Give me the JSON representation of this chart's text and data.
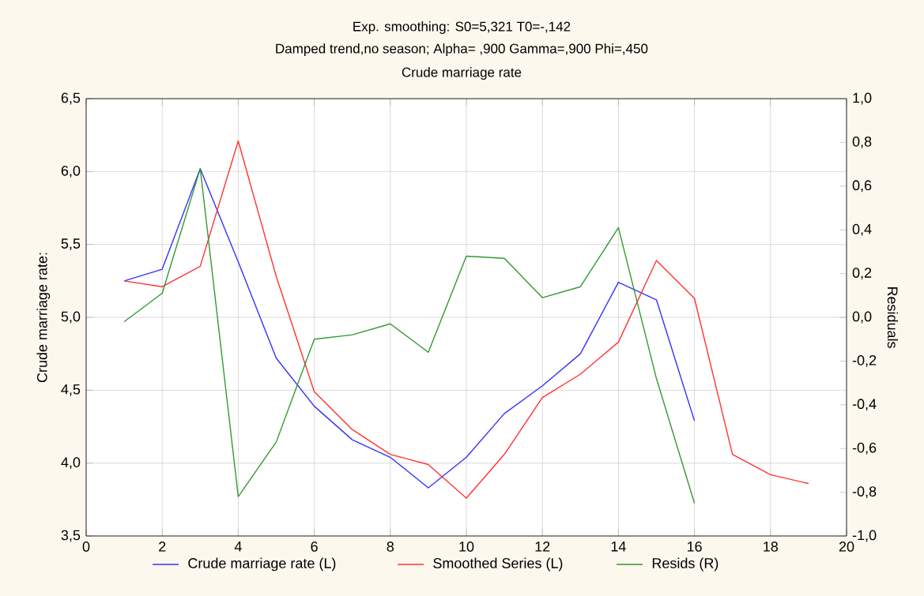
{
  "chart_data": {
    "type": "line",
    "title": "Exp. smoothing:  S0=5,321 T0=-,142",
    "subtitle": "Damped trend,no season; Alpha=  ,900 Gamma=,900 Phi=,450",
    "annotations": [
      "Crude marriage rate"
    ],
    "ylabel": "Crude marriage rate:",
    "y2label": "Residuals",
    "xlim": [
      0,
      20
    ],
    "xticks": [
      0,
      2,
      4,
      6,
      8,
      10,
      12,
      14,
      16,
      18,
      20
    ],
    "ylim": [
      3.5,
      6.5
    ],
    "yticks": [
      {
        "value": 3.5,
        "label": "3,5"
      },
      {
        "value": 4.0,
        "label": "4,0"
      },
      {
        "value": 4.5,
        "label": "4,5"
      },
      {
        "value": 5.0,
        "label": "5,0"
      },
      {
        "value": 5.5,
        "label": "5,5"
      },
      {
        "value": 6.0,
        "label": "6,0"
      },
      {
        "value": 6.5,
        "label": "6,5"
      }
    ],
    "y2lim": [
      -1.0,
      1.0
    ],
    "y2ticks": [
      {
        "value": -1.0,
        "label": "-1,0"
      },
      {
        "value": -0.8,
        "label": "-0,8"
      },
      {
        "value": -0.6,
        "label": "-0,6"
      },
      {
        "value": -0.4,
        "label": "-0,4"
      },
      {
        "value": -0.2,
        "label": "-0,2"
      },
      {
        "value": 0.0,
        "label": "0,0"
      },
      {
        "value": 0.2,
        "label": "0,2"
      },
      {
        "value": 0.4,
        "label": "0,4"
      },
      {
        "value": 0.6,
        "label": "0,6"
      },
      {
        "value": 0.8,
        "label": "0,8"
      },
      {
        "value": 1.0,
        "label": "1,0"
      }
    ],
    "grid": true,
    "legend": "bottom",
    "marker": "none",
    "line_style": "solid",
    "series": [
      {
        "name": "Crude marriage rate (L)",
        "color": "#3333ff",
        "axis": "y",
        "x": [
          1,
          2,
          3,
          4,
          5,
          6,
          7,
          8,
          9,
          10,
          11,
          12,
          13,
          14,
          15,
          16
        ],
        "values": [
          5.25,
          5.33,
          6.02,
          5.38,
          4.72,
          4.39,
          4.16,
          4.04,
          3.83,
          4.04,
          4.34,
          4.53,
          4.75,
          5.24,
          5.12,
          4.29
        ]
      },
      {
        "name": "Smoothed Series (L)",
        "color": "#ff3333",
        "axis": "y",
        "x": [
          1,
          2,
          3,
          4,
          5,
          6,
          7,
          8,
          9,
          10,
          11,
          12,
          13,
          14,
          15,
          16,
          17,
          18,
          19
        ],
        "values": [
          5.25,
          5.21,
          5.35,
          6.21,
          5.28,
          4.49,
          4.23,
          4.06,
          3.99,
          3.76,
          4.06,
          4.45,
          4.61,
          4.83,
          5.39,
          5.13,
          4.06,
          3.92,
          3.86
        ]
      },
      {
        "name": "Resids (R)",
        "color": "#339933",
        "axis": "y2",
        "x": [
          1,
          2,
          3,
          4,
          5,
          6,
          7,
          8,
          9,
          10,
          11,
          12,
          13,
          14,
          15,
          16
        ],
        "values": [
          -0.02,
          0.11,
          0.68,
          -0.82,
          -0.57,
          -0.1,
          -0.08,
          -0.03,
          -0.16,
          0.28,
          0.27,
          0.09,
          0.14,
          0.41,
          -0.28,
          -0.85
        ]
      }
    ]
  }
}
